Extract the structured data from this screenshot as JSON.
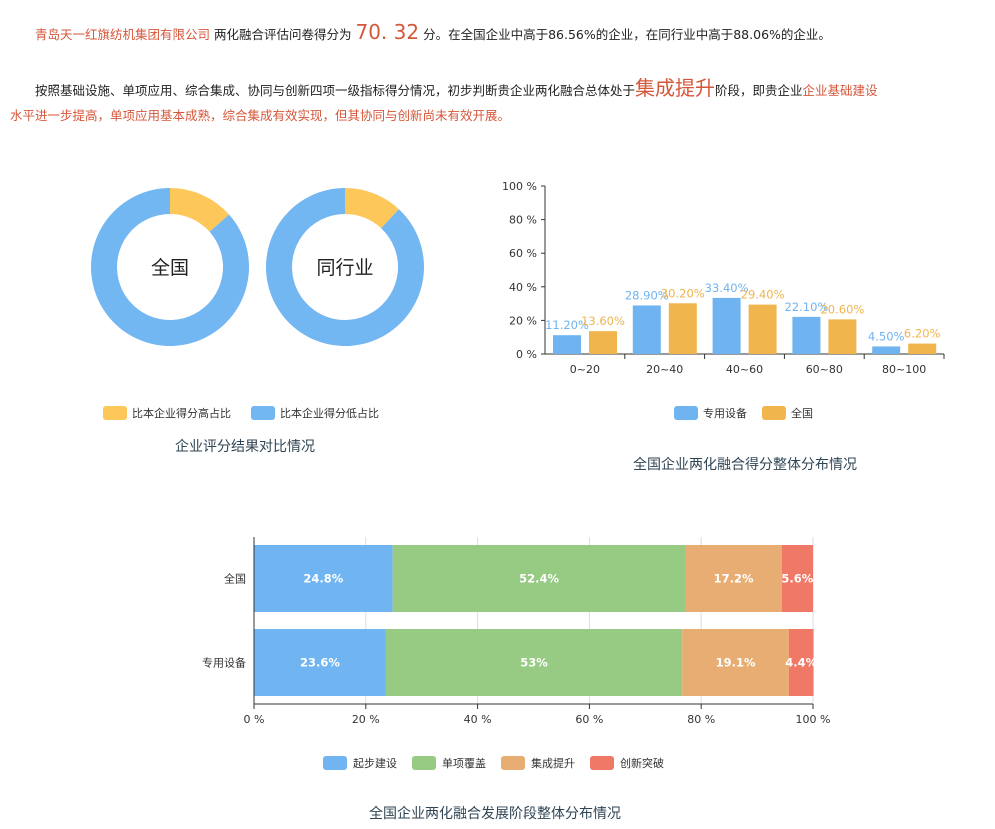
{
  "summary": {
    "company": "青岛天一红旗纺机集团有限公司",
    "text1": " 两化融合评估问卷得分为 ",
    "score": "70. 32",
    "text2": " 分。在全国企业中高于86.56%的企业，在同行业中高于88.06%的企业。",
    "text3": "按照基础设施、单项应用、综合集成、协同与创新四项一级指标得分情况，初步判断贵企业两化融合总体处于",
    "stage": "集成提升",
    "text4": "阶段，即贵企业",
    "text5": "企业基础建设",
    "text6": "水平进一步提高，单项应用基本成熟，综合集成有效实现，但其协同与创新尚未有效开展。"
  },
  "chart_data": [
    {
      "type": "pie",
      "title": "企业评分结果对比情况",
      "legend": [
        "比本企业得分高占比",
        "比本企业得分低占比"
      ],
      "colors": [
        "#fdc75a",
        "#72b6f2"
      ],
      "donuts": [
        {
          "label": "全国",
          "values": [
            13.44,
            86.56
          ]
        },
        {
          "label": "同行业",
          "values": [
            11.94,
            88.06
          ]
        }
      ]
    },
    {
      "type": "bar",
      "title": "全国企业两化融合得分整体分布情况",
      "categories": [
        "0~20",
        "20~40",
        "40~60",
        "60~80",
        "80~100"
      ],
      "yticks": [
        "0 %",
        "20 %",
        "40 %",
        "60 %",
        "80 %",
        "100 %"
      ],
      "ylim": [
        0,
        100
      ],
      "series": [
        {
          "name": "专用设备",
          "color": "#6fb4f1",
          "values": [
            11.2,
            28.9,
            33.4,
            22.1,
            4.5
          ],
          "labels": [
            "11.20%",
            "28.90%",
            "33.40%",
            "22.10%",
            "4.50%"
          ]
        },
        {
          "name": "全国",
          "color": "#f0b54d",
          "values": [
            13.6,
            30.2,
            29.4,
            20.6,
            6.2
          ],
          "labels": [
            "13.60%",
            "30.20%",
            "29.40%",
            "20.60%",
            "6.20%"
          ]
        }
      ],
      "legend_position": "bottom"
    },
    {
      "type": "bar",
      "orientation": "horizontal-stacked",
      "title": "全国企业两化融合发展阶段整体分布情况",
      "categories": [
        "全国",
        "专用设备"
      ],
      "xticks": [
        "0 %",
        "20 %",
        "40 %",
        "60 %",
        "80 %",
        "100 %"
      ],
      "xlim": [
        0,
        100
      ],
      "series": [
        {
          "name": "起步建设",
          "color": "#70b4f1",
          "values": [
            24.8,
            23.6
          ],
          "labels": [
            "24.8%",
            "23.6%"
          ]
        },
        {
          "name": "单项覆盖",
          "color": "#97cb83",
          "values": [
            52.4,
            53
          ],
          "labels": [
            "52.4%",
            "53%"
          ]
        },
        {
          "name": "集成提升",
          "color": "#e8ad72",
          "values": [
            17.2,
            19.1
          ],
          "labels": [
            "17.2%",
            "19.1%"
          ]
        },
        {
          "name": "创新突破",
          "color": "#ef7866",
          "values": [
            5.6,
            4.4
          ],
          "labels": [
            "5.6%",
            "4.4%"
          ]
        }
      ],
      "grid": true,
      "legend_position": "bottom"
    }
  ]
}
